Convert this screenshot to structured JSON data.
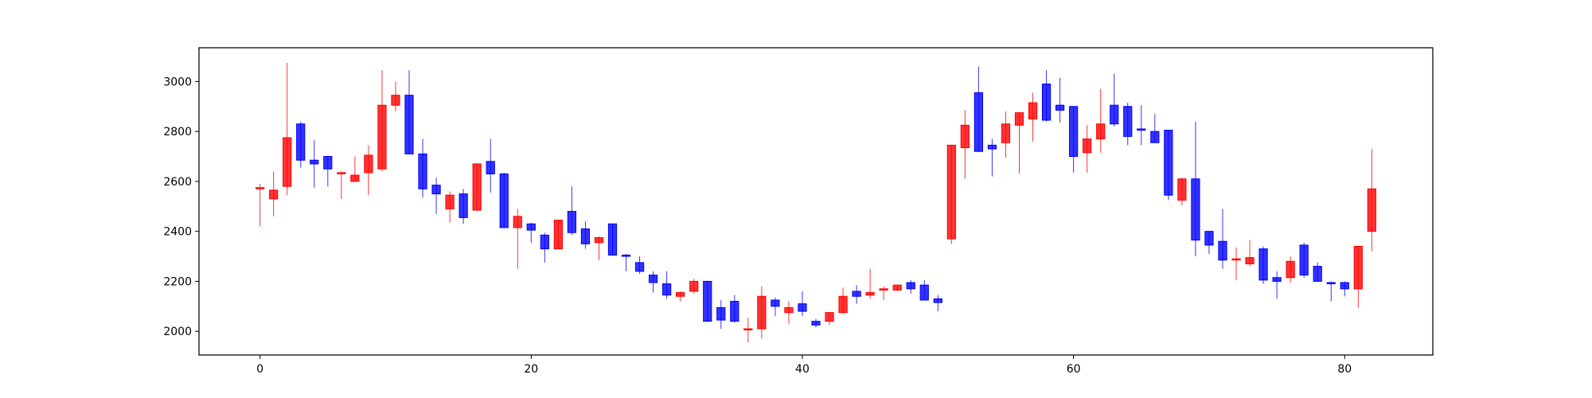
{
  "chart_data": {
    "type": "candlestick",
    "title": "",
    "xlabel": "",
    "ylabel": "",
    "xlim": [
      -4.5,
      86.5
    ],
    "ylim": [
      1905,
      3135
    ],
    "x_ticks": [
      0,
      20,
      40,
      60,
      80
    ],
    "y_ticks": [
      2000,
      2200,
      2400,
      2600,
      2800,
      3000
    ],
    "grid": false,
    "legend": "none",
    "colors": {
      "up": "#ff0000",
      "down": "#0000ff",
      "axis": "#000000"
    },
    "x": [
      0,
      1,
      2,
      3,
      4,
      5,
      6,
      7,
      8,
      9,
      10,
      11,
      12,
      13,
      14,
      15,
      16,
      17,
      18,
      19,
      20,
      21,
      22,
      23,
      24,
      25,
      26,
      27,
      28,
      29,
      30,
      31,
      32,
      33,
      34,
      35,
      36,
      37,
      38,
      39,
      40,
      41,
      42,
      43,
      44,
      45,
      46,
      47,
      48,
      49,
      50,
      51,
      52,
      53,
      54,
      55,
      56,
      57,
      58,
      59,
      60,
      61,
      62,
      63,
      64,
      65,
      66,
      67,
      68,
      69,
      70,
      71,
      72,
      73,
      74,
      75,
      76,
      77,
      78,
      79,
      80,
      81,
      82
    ],
    "open": [
      2575,
      2530,
      2580,
      2830,
      2685,
      2700,
      2635,
      2600,
      2635,
      2650,
      2905,
      2945,
      2710,
      2585,
      2490,
      2550,
      2485,
      2680,
      2630,
      2415,
      2430,
      2385,
      2330,
      2480,
      2410,
      2355,
      2430,
      2305,
      2275,
      2225,
      2190,
      2140,
      2160,
      2200,
      2095,
      2120,
      2010,
      2010,
      2125,
      2075,
      2110,
      2040,
      2040,
      2075,
      2160,
      2145,
      2165,
      2165,
      2195,
      2185,
      2130,
      2370,
      2735,
      2955,
      2745,
      2755,
      2825,
      2850,
      2990,
      2905,
      2900,
      2715,
      2770,
      2905,
      2900,
      2810,
      2800,
      2805,
      2525,
      2610,
      2400,
      2360,
      2290,
      2270,
      2330,
      2215,
      2215,
      2345,
      2260,
      2195,
      2195,
      2170,
      2400
    ],
    "high": [
      2590,
      2640,
      3075,
      2840,
      2765,
      2700,
      2640,
      2700,
      2745,
      3045,
      3000,
      3045,
      2770,
      2615,
      2560,
      2570,
      2670,
      2770,
      2635,
      2490,
      2435,
      2395,
      2445,
      2580,
      2440,
      2380,
      2430,
      2310,
      2300,
      2240,
      2240,
      2160,
      2210,
      2200,
      2125,
      2145,
      2055,
      2180,
      2135,
      2120,
      2160,
      2050,
      2075,
      2175,
      2185,
      2250,
      2180,
      2185,
      2205,
      2205,
      2145,
      2745,
      2885,
      3060,
      2770,
      2880,
      2875,
      2955,
      3045,
      3015,
      2900,
      2825,
      2970,
      3030,
      2915,
      2905,
      2870,
      2805,
      2615,
      2840,
      2400,
      2490,
      2335,
      2365,
      2340,
      2240,
      2300,
      2355,
      2275,
      2200,
      2200,
      2340,
      2730
    ],
    "low": [
      2420,
      2460,
      2545,
      2655,
      2575,
      2580,
      2530,
      2600,
      2545,
      2640,
      2880,
      2710,
      2535,
      2470,
      2435,
      2430,
      2480,
      2555,
      2415,
      2250,
      2355,
      2275,
      2330,
      2385,
      2330,
      2285,
      2305,
      2240,
      2230,
      2155,
      2130,
      2120,
      2150,
      2040,
      2010,
      2035,
      1955,
      1970,
      2060,
      2030,
      2060,
      2015,
      2025,
      2070,
      2110,
      2130,
      2125,
      2160,
      2150,
      2130,
      2080,
      2350,
      2610,
      2720,
      2620,
      2695,
      2630,
      2760,
      2840,
      2835,
      2635,
      2635,
      2715,
      2820,
      2745,
      2745,
      2755,
      2525,
      2505,
      2300,
      2310,
      2250,
      2205,
      2260,
      2190,
      2130,
      2195,
      2215,
      2200,
      2120,
      2140,
      2095,
      2320
    ],
    "close": [
      2575,
      2565,
      2775,
      2685,
      2670,
      2650,
      2635,
      2625,
      2705,
      2905,
      2945,
      2710,
      2570,
      2550,
      2545,
      2455,
      2670,
      2630,
      2415,
      2460,
      2405,
      2330,
      2445,
      2395,
      2350,
      2375,
      2305,
      2300,
      2240,
      2195,
      2145,
      2155,
      2200,
      2040,
      2045,
      2040,
      2010,
      2140,
      2100,
      2095,
      2080,
      2025,
      2075,
      2140,
      2140,
      2155,
      2170,
      2185,
      2170,
      2125,
      2115,
      2745,
      2825,
      2720,
      2730,
      2830,
      2875,
      2915,
      2845,
      2885,
      2700,
      2770,
      2830,
      2830,
      2780,
      2805,
      2755,
      2545,
      2610,
      2365,
      2345,
      2285,
      2290,
      2295,
      2205,
      2200,
      2280,
      2225,
      2200,
      2190,
      2170,
      2340,
      2570
    ]
  }
}
